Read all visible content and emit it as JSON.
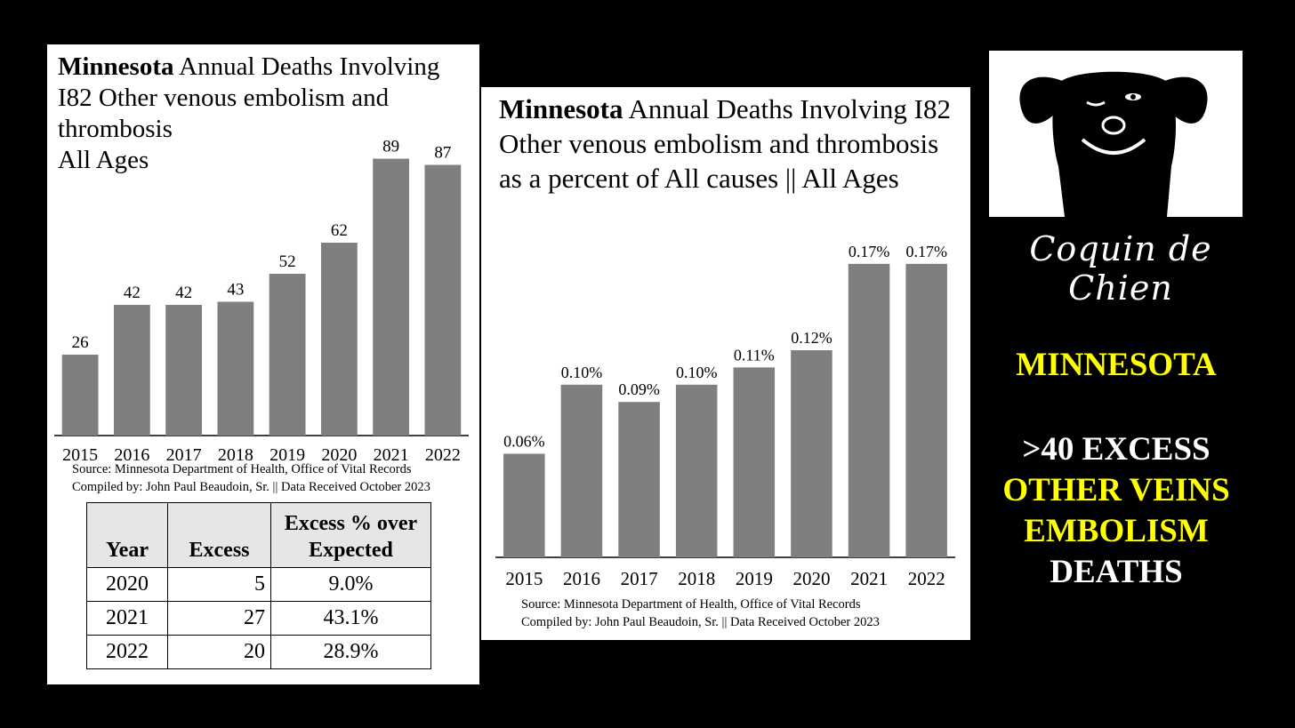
{
  "left_panel": {
    "title_bold": "Minnesota",
    "title_rest": " Annual Deaths Involving I82 Other venous embolism and thrombosis",
    "title_line2": "All Ages",
    "source_line1": "Source:  Minnesota Department of Health, Office of Vital Records",
    "source_line2": "Compiled by:  John Paul Beaudoin, Sr. || Data Received October 2023",
    "table": {
      "headers": [
        "Year",
        "Excess",
        "Excess % over Expected"
      ],
      "rows": [
        [
          "2020",
          "5",
          "9.0%"
        ],
        [
          "2021",
          "27",
          "43.1%"
        ],
        [
          "2022",
          "20",
          "28.9%"
        ]
      ]
    }
  },
  "mid_panel": {
    "title_bold": "Minnesota",
    "title_rest": " Annual Deaths Involving I82 Other venous embolism and thrombosis as a percent of All causes || All Ages",
    "source_line1": "Source:  Minnesota Department of Health, Office of Vital Records",
    "source_line2": "Compiled by:  John Paul Beaudoin, Sr. || Data Received October 2023"
  },
  "right_panel": {
    "brand": "Coquin de Chien",
    "headline1": "MINNESOTA",
    "headline2": ">40 EXCESS",
    "headline3": "OTHER VEINS",
    "headline4": "EMBOLISM",
    "headline5": "DEATHS"
  },
  "colors": {
    "bar": "#7f7f7f",
    "yellow": "#ffff00",
    "background": "#000000"
  },
  "chart_data": [
    {
      "type": "bar",
      "title": "Minnesota Annual Deaths Involving I82 Other venous embolism and thrombosis All Ages",
      "categories": [
        "2015",
        "2016",
        "2017",
        "2018",
        "2019",
        "2020",
        "2021",
        "2022"
      ],
      "values": [
        26,
        42,
        42,
        43,
        52,
        62,
        89,
        87
      ],
      "labels": [
        "26",
        "42",
        "42",
        "43",
        "52",
        "62",
        "89",
        "87"
      ],
      "ylim": [
        0,
        100
      ],
      "grid": false
    },
    {
      "type": "bar",
      "title": "Minnesota Annual Deaths Involving I82 Other venous embolism and thrombosis as a percent of All causes || All Ages",
      "categories": [
        "2015",
        "2016",
        "2017",
        "2018",
        "2019",
        "2020",
        "2021",
        "2022"
      ],
      "values": [
        0.06,
        0.1,
        0.09,
        0.1,
        0.11,
        0.12,
        0.17,
        0.17
      ],
      "labels": [
        "0.06%",
        "0.10%",
        "0.09%",
        "0.10%",
        "0.11%",
        "0.12%",
        "0.17%",
        "0.17%"
      ],
      "ylim": [
        0,
        0.19
      ],
      "grid": false
    }
  ]
}
